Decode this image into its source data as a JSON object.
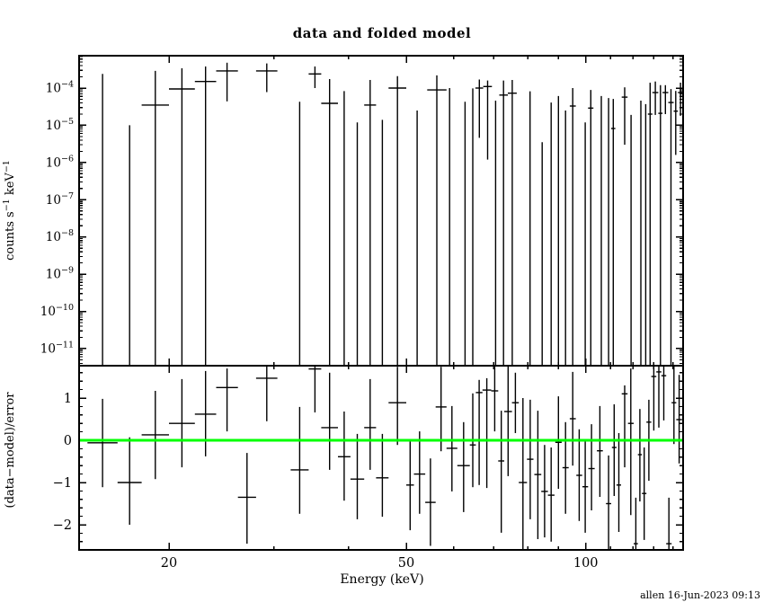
{
  "title": "data and folded model",
  "credit": "allen 16-Jun-2023 09:13",
  "chart_data": {
    "type": "scatter",
    "subtype": "xspec-spectrum-with-residuals",
    "background": "#ffffff",
    "data_color": "#000000",
    "x_axis": {
      "label": "Energy (keV)",
      "scale": "log",
      "lim_log10": [
        1.1503,
        2.1632
      ],
      "range_kev": [
        14.1,
        145.6
      ],
      "major_ticks": [
        20,
        50,
        100
      ],
      "minor_ticks": [
        30,
        40,
        60,
        70,
        80,
        90,
        110,
        120,
        130,
        140
      ]
    },
    "top_panel": {
      "ylabel": "counts s−1 keV−1",
      "ylabel_parts": [
        {
          "t": "counts s"
        },
        {
          "sup": "−1"
        },
        {
          "t": " keV"
        },
        {
          "sup": "−1"
        }
      ],
      "yscale": "log",
      "ylim_log10": [
        -11.46,
        -3.13
      ],
      "ytick_exponents": [
        -4,
        -5,
        -6,
        -7,
        -8,
        -9,
        -10,
        -11
      ],
      "points_note": "each point: [E_lo_keV, E_hi_keV, rate_or_null, err_top, err_bottom_or_null(null=extends to panel floor)] in counts/s/keV",
      "points": [
        [
          14.6,
          16.4,
          null,
          0.00024,
          null
        ],
        [
          16.4,
          18.0,
          null,
          1e-05,
          null
        ],
        [
          18.0,
          20.0,
          3.5e-05,
          0.00029,
          null
        ],
        [
          20.0,
          22.1,
          9.5e-05,
          0.00034,
          null
        ],
        [
          22.1,
          24.0,
          0.00015,
          0.00038,
          null
        ],
        [
          24.0,
          26.1,
          0.00029,
          0.00048,
          4.4e-05
        ],
        [
          28.0,
          30.4,
          0.00029,
          0.00046,
          7.8e-05
        ],
        [
          32.0,
          34.3,
          null,
          4.3e-05,
          null
        ],
        [
          34.3,
          36.0,
          0.00024,
          0.00038,
          0.0001
        ],
        [
          36.0,
          38.4,
          3.9e-05,
          0.000175,
          null
        ],
        [
          38.4,
          40.3,
          null,
          8.3e-05,
          null
        ],
        [
          40.3,
          42.5,
          null,
          1.2e-05,
          null
        ],
        [
          42.5,
          44.5,
          3.5e-05,
          0.000165,
          null
        ],
        [
          44.5,
          46.7,
          null,
          1.4e-05,
          null
        ],
        [
          46.7,
          50.0,
          0.0001,
          0.00021,
          null
        ],
        [
          51.0,
          53.3,
          null,
          2.5e-05,
          null
        ],
        [
          54.2,
          58.4,
          8.9e-05,
          0.00022,
          null
        ],
        [
          58.4,
          59.8,
          null,
          0.0001,
          null
        ],
        [
          61.5,
          64.0,
          null,
          4.3e-05,
          null
        ],
        [
          64.0,
          65.3,
          null,
          9.8e-05,
          null
        ],
        [
          65.3,
          67.3,
          0.0001,
          0.00017,
          4.6e-06
        ],
        [
          67.3,
          69.6,
          0.00011,
          0.00016,
          1.2e-06
        ],
        [
          69.6,
          71.6,
          null,
          4.6e-05,
          null
        ],
        [
          71.6,
          74.0,
          6.5e-05,
          0.00016,
          null
        ],
        [
          74.0,
          76.6,
          7.3e-05,
          0.000165,
          null
        ],
        [
          79.5,
          81.8,
          null,
          8.2e-05,
          null
        ],
        [
          83.4,
          85.6,
          null,
          3.5e-06,
          null
        ],
        [
          86.4,
          88.6,
          null,
          4.1e-05,
          null
        ],
        [
          88.9,
          91.1,
          null,
          6.1e-05,
          null
        ],
        [
          91.4,
          93.6,
          null,
          2.5e-05,
          null
        ],
        [
          94.0,
          96.2,
          3.3e-05,
          0.0001,
          null
        ],
        [
          98.7,
          100.9,
          null,
          1.2e-05,
          null
        ],
        [
          100.9,
          103.0,
          2.9e-05,
          8.9e-05,
          null
        ],
        [
          105.1,
          107.3,
          null,
          6.1e-05,
          null
        ],
        [
          108.1,
          110.3,
          null,
          5.4e-05,
          null
        ],
        [
          110.3,
          112.1,
          8.2e-06,
          5.1e-05,
          null
        ],
        [
          114.9,
          117.5,
          5.7e-05,
          0.000105,
          3e-06
        ],
        [
          117.8,
          120.4,
          null,
          1.9e-05,
          null
        ],
        [
          122.4,
          125.0,
          null,
          4.6e-05,
          null
        ],
        [
          125.0,
          127.1,
          null,
          3.7e-05,
          null
        ],
        [
          127.1,
          129.3,
          2e-05,
          0.00014,
          null
        ],
        [
          129.3,
          132.3,
          7.6e-05,
          0.00015,
          1.9e-05
        ],
        [
          132.3,
          134.5,
          2.1e-05,
          0.00012,
          null
        ],
        [
          134.5,
          137.5,
          7.6e-05,
          0.00012,
          2e-05
        ],
        [
          137.5,
          140.4,
          4.1e-05,
          9.4e-05,
          null
        ],
        [
          140.4,
          142.7,
          2.4e-05,
          8.4e-05,
          1.6e-06
        ],
        [
          142.7,
          145.6,
          7.6e-05,
          0.00014,
          1.8e-05
        ]
      ]
    },
    "bottom_panel": {
      "ylabel": "(data−model)/error",
      "yscale": "linear",
      "ylim": [
        -2.596,
        1.766
      ],
      "ytick_labels": [
        1,
        0,
        -1,
        -2
      ],
      "zero_line_color": "#00ff00",
      "points_note": "each point: [E_lo_keV, E_hi_keV, residual_sigma, err_top, err_bottom]",
      "points": [
        [
          14.6,
          16.4,
          -0.06,
          0.98,
          -1.11
        ],
        [
          16.4,
          18.0,
          -1.0,
          0.07,
          -2.0
        ],
        [
          18.0,
          20.0,
          0.13,
          1.17,
          -0.92
        ],
        [
          20.0,
          22.1,
          0.4,
          1.45,
          -0.64
        ],
        [
          22.1,
          24.0,
          0.62,
          1.64,
          -0.38
        ],
        [
          24.0,
          26.1,
          1.25,
          1.7,
          0.21
        ],
        [
          26.1,
          28.0,
          -1.35,
          -0.3,
          -2.45
        ],
        [
          28.0,
          30.4,
          1.47,
          1.9,
          0.45
        ],
        [
          32.0,
          34.3,
          -0.7,
          0.79,
          -1.74
        ],
        [
          34.3,
          36.0,
          1.69,
          2.0,
          0.66
        ],
        [
          36.0,
          38.4,
          0.3,
          1.6,
          -0.7
        ],
        [
          38.4,
          40.3,
          -0.39,
          0.68,
          -1.43
        ],
        [
          40.3,
          42.5,
          -0.92,
          0.15,
          -1.87
        ],
        [
          42.5,
          44.5,
          0.3,
          1.45,
          -0.7
        ],
        [
          44.5,
          46.7,
          -0.89,
          0.15,
          -1.81
        ],
        [
          46.7,
          50.0,
          0.89,
          1.74,
          -0.11
        ],
        [
          50.0,
          51.5,
          -1.06,
          0.0,
          -2.13
        ],
        [
          51.5,
          53.8,
          -0.8,
          0.21,
          -1.74
        ],
        [
          53.8,
          56.0,
          -1.47,
          -0.43,
          -2.5
        ],
        [
          56.0,
          58.4,
          0.79,
          1.74,
          -0.26
        ],
        [
          58.4,
          60.9,
          -0.19,
          0.81,
          -1.21
        ],
        [
          60.9,
          63.9,
          -0.6,
          0.43,
          -1.7
        ],
        [
          63.9,
          65.4,
          -0.11,
          1.11,
          -1.11
        ],
        [
          65.4,
          67.1,
          1.13,
          1.43,
          -1.06
        ],
        [
          67.1,
          69.4,
          1.19,
          1.47,
          -1.13
        ],
        [
          69.4,
          71.3,
          1.17,
          1.77,
          0.21
        ],
        [
          71.3,
          73.0,
          -0.49,
          0.7,
          -2.19
        ],
        [
          73.0,
          75.2,
          0.68,
          1.8,
          -0.85
        ],
        [
          75.2,
          77.2,
          0.89,
          1.6,
          0.17
        ],
        [
          77.2,
          79.7,
          -1.0,
          1.0,
          -2.7
        ],
        [
          79.7,
          81.7,
          -0.45,
          0.96,
          -1.87
        ],
        [
          82.0,
          84.2,
          -0.81,
          0.7,
          -2.34
        ],
        [
          84.2,
          86.4,
          -1.21,
          -0.11,
          -2.3
        ],
        [
          86.4,
          88.6,
          -1.3,
          -0.17,
          -2.4
        ],
        [
          88.9,
          91.1,
          -0.05,
          1.04,
          -1.15
        ],
        [
          91.4,
          93.6,
          -0.65,
          0.43,
          -1.74
        ],
        [
          94.0,
          96.2,
          0.51,
          1.62,
          -0.6
        ],
        [
          96.4,
          98.6,
          -0.83,
          0.26,
          -1.91
        ],
        [
          98.7,
          100.9,
          -1.1,
          -0.02,
          -2.19
        ],
        [
          101.0,
          103.5,
          -0.67,
          0.38,
          -1.66
        ],
        [
          104.4,
          106.8,
          -0.25,
          0.81,
          -1.34
        ],
        [
          108.1,
          110.3,
          -1.5,
          -0.36,
          -2.7
        ],
        [
          110.6,
          112.6,
          -0.17,
          0.85,
          -1.32
        ],
        [
          112.6,
          114.6,
          -1.06,
          0.17,
          -2.17
        ],
        [
          114.9,
          117.5,
          1.1,
          1.3,
          -0.64
        ],
        [
          117.7,
          120.3,
          0.4,
          1.7,
          -1.77
        ],
        [
          120.3,
          122.3,
          -2.45,
          -1.36,
          -2.7
        ],
        [
          122.3,
          124.2,
          -0.34,
          0.74,
          -1.45
        ],
        [
          124.2,
          126.4,
          -1.26,
          -0.17,
          -2.36
        ],
        [
          126.4,
          128.8,
          0.43,
          0.96,
          -0.96
        ],
        [
          128.8,
          131.3,
          1.51,
          1.9,
          0.23
        ],
        [
          131.3,
          133.9,
          1.62,
          1.95,
          0.3
        ],
        [
          133.9,
          136.4,
          1.53,
          1.9,
          0.47
        ],
        [
          136.4,
          139.3,
          -2.45,
          -1.36,
          -2.7
        ],
        [
          139.3,
          141.8,
          0.89,
          1.9,
          -0.09
        ],
        [
          141.8,
          145.0,
          0.49,
          1.55,
          -0.55
        ]
      ]
    }
  }
}
